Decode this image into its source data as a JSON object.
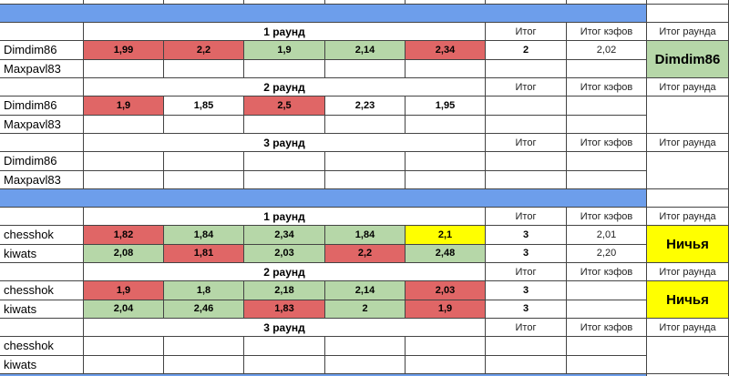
{
  "header_labels": {
    "total": "Итог",
    "coef_total": "Итог кэфов",
    "round_total": "Итог раунда"
  },
  "games": [
    {
      "rounds": [
        {
          "title": "1 раунд",
          "winner": "Dimdim86",
          "winner_fill": "green",
          "players": [
            {
              "name": "Dimdim86",
              "total": "2",
              "coef_total": "2,02",
              "cells": [
                {
                  "value": "1,99",
                  "fill": "red"
                },
                {
                  "value": "2,2",
                  "fill": "red"
                },
                {
                  "value": "1,9",
                  "fill": "green"
                },
                {
                  "value": "2,14",
                  "fill": "green"
                },
                {
                  "value": "2,34",
                  "fill": "red"
                }
              ]
            },
            {
              "name": "Maxpavl83",
              "cells": []
            }
          ]
        },
        {
          "title": "2 раунд",
          "players": [
            {
              "name": "Dimdim86",
              "cells": [
                {
                  "value": "1,9",
                  "fill": "red"
                },
                {
                  "value": "1,85"
                },
                {
                  "value": "2,5",
                  "fill": "red"
                },
                {
                  "value": "2,23"
                },
                {
                  "value": "1,95"
                }
              ]
            },
            {
              "name": "Maxpavl83",
              "cells": []
            }
          ]
        },
        {
          "title": "3 раунд",
          "players": [
            {
              "name": "Dimdim86",
              "cells": []
            },
            {
              "name": "Maxpavl83",
              "cells": []
            }
          ]
        }
      ]
    },
    {
      "rounds": [
        {
          "title": "1 раунд",
          "winner": "Ничья",
          "winner_fill": "yellow",
          "players": [
            {
              "name": "chesshok",
              "total": "3",
              "coef_total": "2,01",
              "cells": [
                {
                  "value": "1,82",
                  "fill": "red"
                },
                {
                  "value": "1,84",
                  "fill": "green"
                },
                {
                  "value": "2,34",
                  "fill": "green"
                },
                {
                  "value": "1,84",
                  "fill": "green"
                },
                {
                  "value": "2,1",
                  "fill": "yellow"
                }
              ]
            },
            {
              "name": "kiwats",
              "total": "3",
              "coef_total": "2,20",
              "cells": [
                {
                  "value": "2,08",
                  "fill": "green"
                },
                {
                  "value": "1,81",
                  "fill": "red"
                },
                {
                  "value": "2,03",
                  "fill": "green"
                },
                {
                  "value": "2,2",
                  "fill": "red"
                },
                {
                  "value": "2,48",
                  "fill": "green"
                }
              ]
            }
          ]
        },
        {
          "title": "2 раунд",
          "winner": "Ничья",
          "winner_fill": "yellow",
          "players": [
            {
              "name": "chesshok",
              "total": "3",
              "cells": [
                {
                  "value": "1,9",
                  "fill": "red"
                },
                {
                  "value": "1,8",
                  "fill": "green"
                },
                {
                  "value": "2,18",
                  "fill": "green"
                },
                {
                  "value": "2,14",
                  "fill": "green"
                },
                {
                  "value": "2,03",
                  "fill": "red"
                }
              ]
            },
            {
              "name": "kiwats",
              "total": "3",
              "cells": [
                {
                  "value": "2,04",
                  "fill": "green"
                },
                {
                  "value": "2,46",
                  "fill": "green"
                },
                {
                  "value": "1,83",
                  "fill": "red"
                },
                {
                  "value": "2",
                  "fill": "green"
                },
                {
                  "value": "1,9",
                  "fill": "red"
                }
              ]
            }
          ]
        },
        {
          "title": "3 раунд",
          "players": [
            {
              "name": "chesshok",
              "cells": []
            },
            {
              "name": "kiwats",
              "cells": []
            }
          ]
        }
      ]
    }
  ]
}
